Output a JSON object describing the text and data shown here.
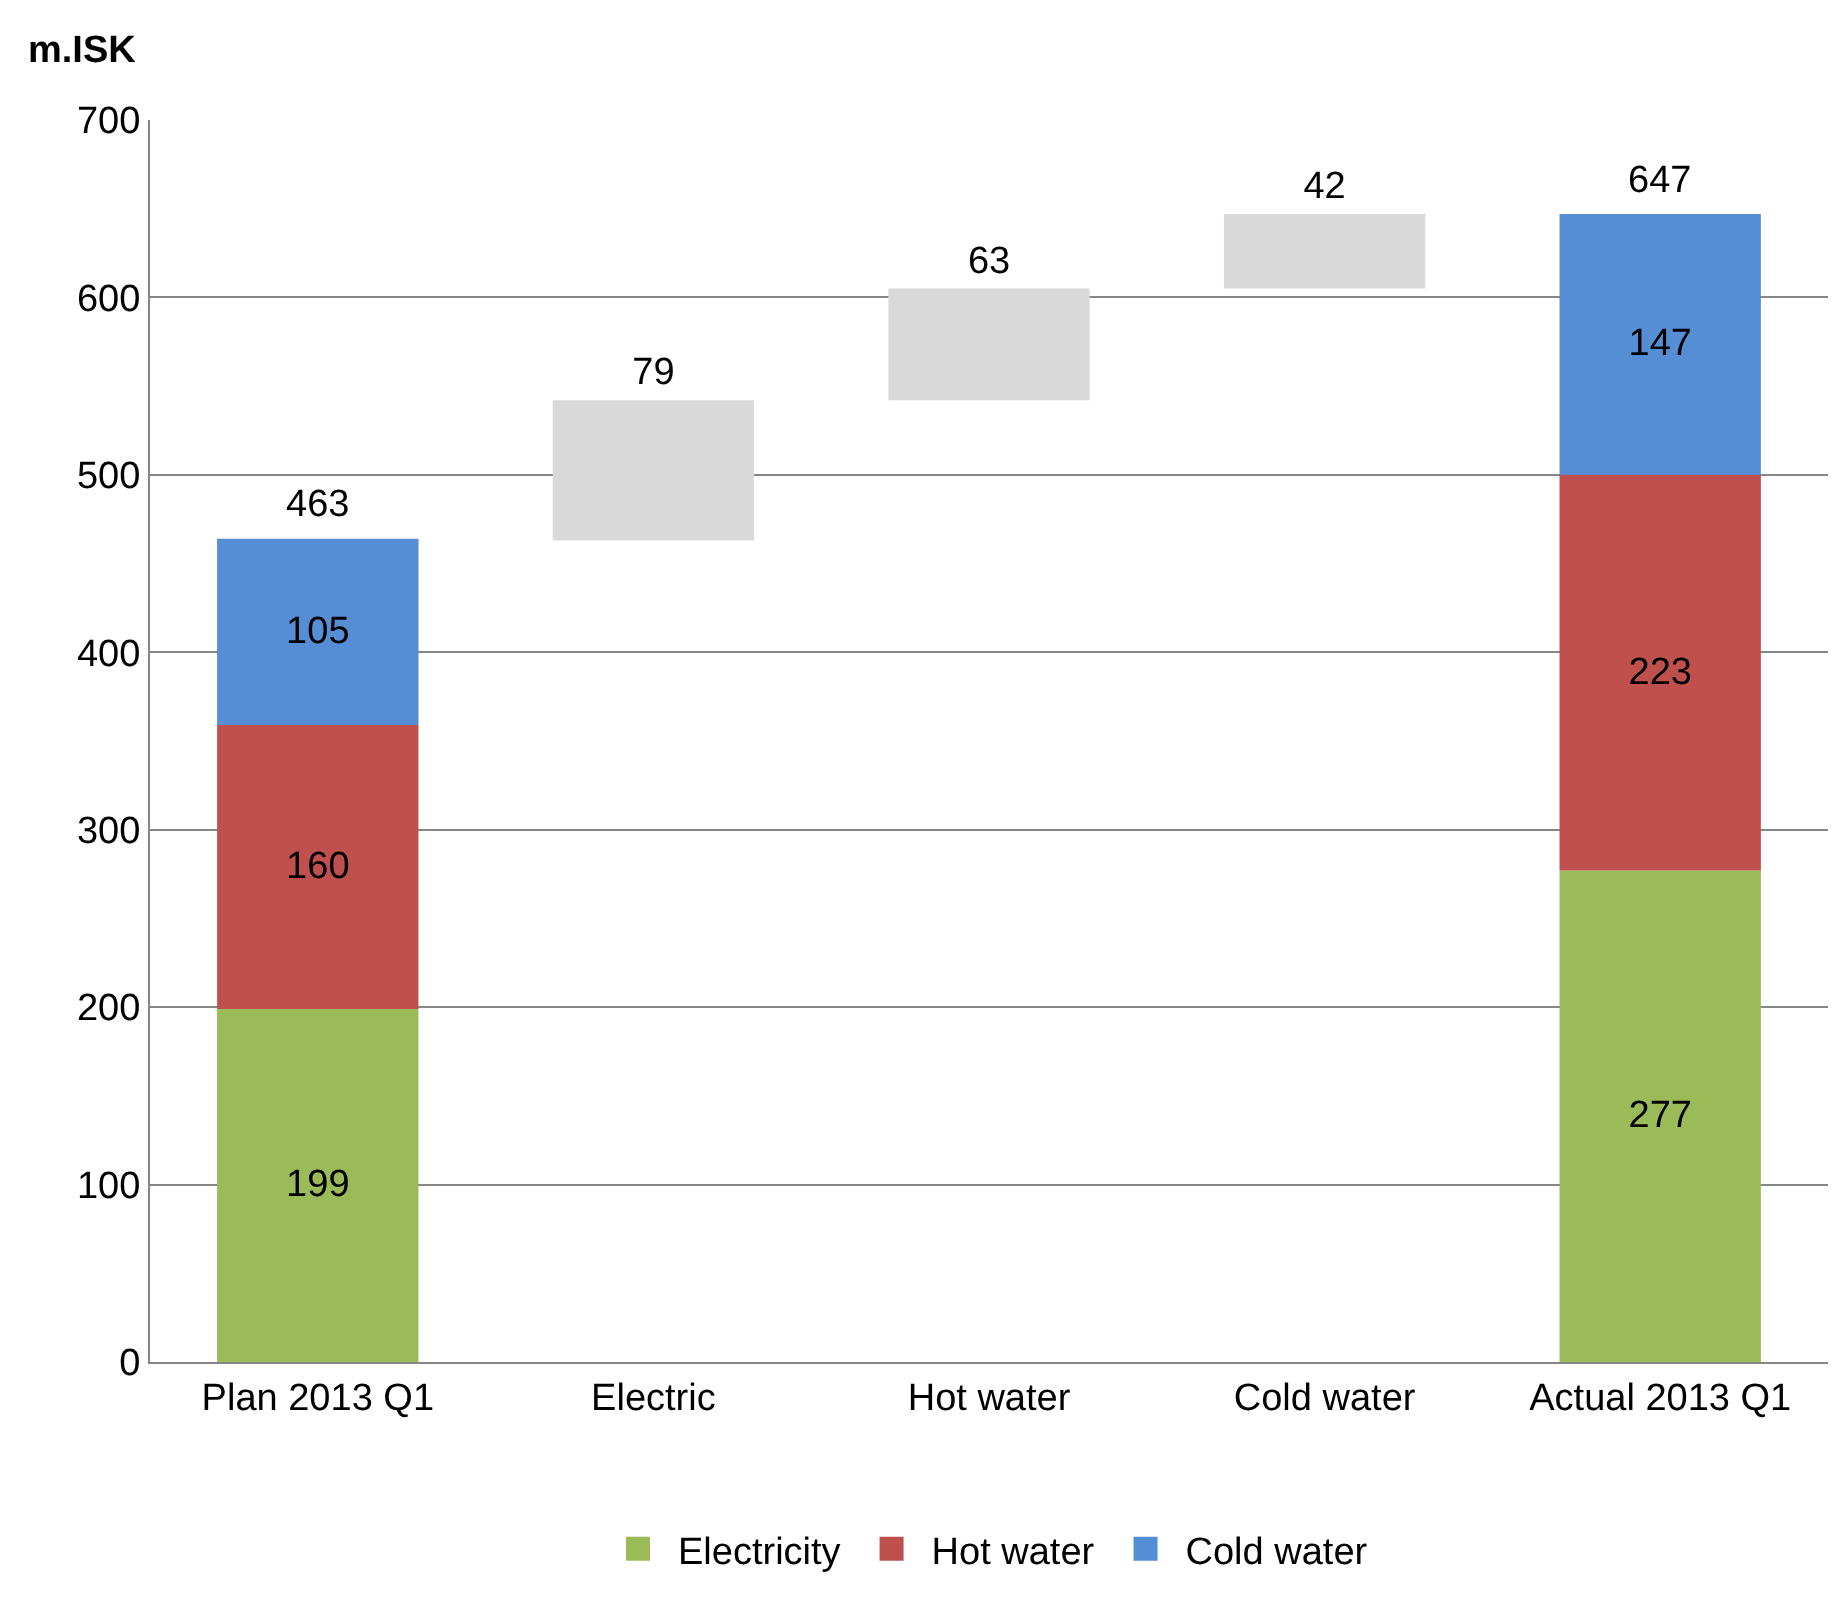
{
  "chart_data": {
    "type": "bar",
    "ylabel": "m.ISK",
    "stacked": true,
    "data_labels": true,
    "categories": [
      "Plan 2013 Q1",
      "Electric",
      "Hot water",
      "Cold water",
      "Actual 2013 Q1"
    ],
    "series": [
      {
        "name": "Electricity",
        "color": "#9bbb59",
        "values": [
          199,
          null,
          null,
          null,
          277
        ]
      },
      {
        "name": "Hot water",
        "color": "#c0504d",
        "values": [
          160,
          null,
          null,
          null,
          223
        ]
      },
      {
        "name": "Cold water",
        "color": "#558ed5",
        "values": [
          105,
          null,
          null,
          null,
          147
        ]
      },
      {
        "color": "#d9d9d9",
        "values": [
          null,
          79,
          63,
          42,
          null
        ],
        "base": [
          null,
          463,
          542,
          605,
          null
        ]
      }
    ],
    "totals": [
      "463",
      null,
      null,
      null,
      "647"
    ],
    "ylim": [
      0,
      700
    ],
    "yticks": [
      0,
      100,
      200,
      300,
      400,
      500,
      600,
      700
    ],
    "grid": "y",
    "legend": "bottom"
  }
}
